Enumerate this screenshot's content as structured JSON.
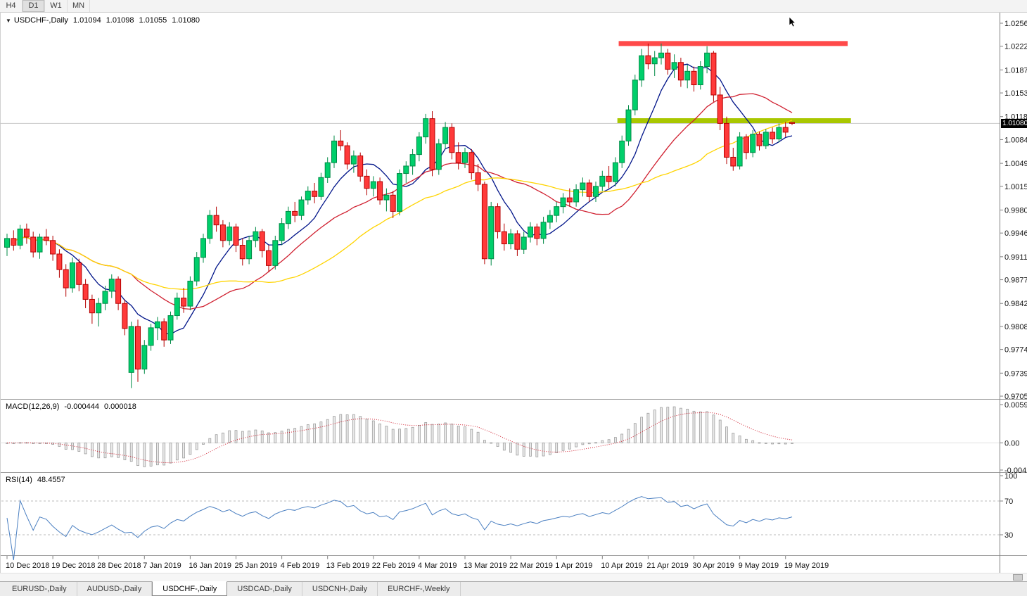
{
  "toolbar": {
    "timeframes": [
      "H4",
      "D1",
      "W1",
      "MN"
    ],
    "active": "D1"
  },
  "chart": {
    "title": {
      "symbol": "USDCHF-,Daily",
      "open": "1.01094",
      "high": "1.01098",
      "low": "1.01055",
      "close": "1.01080"
    },
    "current_price_label": "1.01080",
    "price_axis": [
      "1.02560",
      "1.02220",
      "1.01870",
      "1.01530",
      "1.01180",
      "1.00840",
      "1.00490",
      "1.00150",
      "0.99800",
      "0.99460",
      "0.99110",
      "0.98770",
      "0.98420",
      "0.98080",
      "0.97740",
      "0.97390",
      "0.97050"
    ],
    "date_axis": [
      "10 Dec 2018",
      "19 Dec 2018",
      "28 Dec 2018",
      "7 Jan 2019",
      "16 Jan 2019",
      "25 Jan 2019",
      "4 Feb 2019",
      "13 Feb 2019",
      "22 Feb 2019",
      "4 Mar 2019",
      "13 Mar 2019",
      "22 Mar 2019",
      "1 Apr 2019",
      "10 Apr 2019",
      "21 Apr 2019",
      "30 Apr 2019",
      "9 May 2019",
      "19 May 2019"
    ]
  },
  "macd": {
    "label": "MACD(12,26,9)",
    "value_main": "-0.000444",
    "value_signal": "0.000018",
    "axis": [
      "0.00597",
      "0.00",
      "-0.00424"
    ],
    "range": {
      "top": 0.00597,
      "bottom": -0.00424
    },
    "params": {
      "fast": 12,
      "slow": 26,
      "signal": 9
    }
  },
  "rsi": {
    "label": "RSI(14)",
    "value": "48.4557",
    "axis": [
      "100",
      "70",
      "30"
    ],
    "levels": [
      70,
      30
    ],
    "period": 14
  },
  "tabs": {
    "items": [
      "EURUSD-,Daily",
      "AUDUSD-,Daily",
      "USDCHF-,Daily",
      "USDCAD-,Daily",
      "USDCNH-,Daily",
      "EURCHF-,Weekly"
    ],
    "active_index": 2
  },
  "colors": {
    "candle_up": "#00cf6b",
    "candle_up_border": "#008a46",
    "candle_down": "#ff3a3a",
    "candle_down_border": "#b40000",
    "macd_hist_fill": "#e9e9e9",
    "macd_hist_border": "#9a9a9a",
    "macd_signal": "#d02030",
    "rsi_line": "#4a7fc1",
    "bid_line": "#c9c9c9",
    "resistance": "#ff4a4a",
    "support": "#a9c700"
  },
  "chart_data": {
    "type": "candlestick",
    "symbol": "USDCHF",
    "timeframe": "Daily",
    "price_range": {
      "top": 1.0256,
      "bottom": 0.9705
    },
    "moving_averages": [
      {
        "name": "ma-fast",
        "period": 8,
        "color": "#001489"
      },
      {
        "name": "ma-mid",
        "period": 20,
        "color": "#d02030"
      },
      {
        "name": "ma-slow",
        "period": 34,
        "color": "#ffd400"
      }
    ],
    "levels": [
      {
        "name": "resistance-line",
        "price": 1.0226,
        "from_index": 93.5,
        "to_index": 128.5,
        "color": "#ff4a4a",
        "thickness": 7
      },
      {
        "name": "support-line",
        "price": 1.0112,
        "from_index": 93.3,
        "to_index": 129.0,
        "color": "#a9c700",
        "thickness": 7
      }
    ],
    "bid_price": 1.0108,
    "ohlc": [
      [
        0.9925,
        0.9945,
        0.9912,
        0.9938
      ],
      [
        0.9938,
        0.995,
        0.992,
        0.9928
      ],
      [
        0.9928,
        0.9958,
        0.9922,
        0.9952
      ],
      [
        0.9952,
        0.996,
        0.993,
        0.994
      ],
      [
        0.994,
        0.9948,
        0.991,
        0.9918
      ],
      [
        0.9918,
        0.9945,
        0.9908,
        0.994
      ],
      [
        0.994,
        0.9952,
        0.9928,
        0.9935
      ],
      [
        0.9935,
        0.9942,
        0.9905,
        0.9915
      ],
      [
        0.9915,
        0.9922,
        0.988,
        0.9892
      ],
      [
        0.9892,
        0.99,
        0.9852,
        0.9865
      ],
      [
        0.9865,
        0.991,
        0.9858,
        0.9902
      ],
      [
        0.9902,
        0.9908,
        0.986,
        0.987
      ],
      [
        0.987,
        0.9878,
        0.9835,
        0.9848
      ],
      [
        0.9848,
        0.9855,
        0.9812,
        0.9828
      ],
      [
        0.9828,
        0.985,
        0.9808,
        0.9842
      ],
      [
        0.9842,
        0.9868,
        0.9832,
        0.986
      ],
      [
        0.986,
        0.9885,
        0.985,
        0.9878
      ],
      [
        0.9878,
        0.9882,
        0.9832,
        0.9842
      ],
      [
        0.9842,
        0.9848,
        0.9795,
        0.9805
      ],
      [
        0.974,
        0.9815,
        0.9717,
        0.9808
      ],
      [
        0.9808,
        0.9818,
        0.9726,
        0.9745
      ],
      [
        0.9745,
        0.9788,
        0.9738,
        0.978
      ],
      [
        0.978,
        0.9812,
        0.9772,
        0.9806
      ],
      [
        0.9806,
        0.9822,
        0.9788,
        0.9815
      ],
      [
        0.9815,
        0.982,
        0.9778,
        0.9788
      ],
      [
        0.9788,
        0.983,
        0.9782,
        0.9824
      ],
      [
        0.9824,
        0.9858,
        0.9818,
        0.985
      ],
      [
        0.985,
        0.9865,
        0.9828,
        0.9838
      ],
      [
        0.9838,
        0.9882,
        0.9832,
        0.9875
      ],
      [
        0.9875,
        0.9918,
        0.9868,
        0.991
      ],
      [
        0.991,
        0.9945,
        0.9902,
        0.9938
      ],
      [
        0.9938,
        0.998,
        0.993,
        0.9972
      ],
      [
        0.9972,
        0.9985,
        0.9948,
        0.9958
      ],
      [
        0.9958,
        0.9965,
        0.9925,
        0.9935
      ],
      [
        0.9935,
        0.9962,
        0.9928,
        0.9955
      ],
      [
        0.9955,
        0.996,
        0.9918,
        0.9928
      ],
      [
        0.9928,
        0.9938,
        0.9898,
        0.9908
      ],
      [
        0.9908,
        0.9942,
        0.99,
        0.9935
      ],
      [
        0.9935,
        0.9955,
        0.9925,
        0.9948
      ],
      [
        0.9948,
        0.9952,
        0.991,
        0.992
      ],
      [
        0.992,
        0.9928,
        0.9888,
        0.9898
      ],
      [
        0.9898,
        0.9942,
        0.9892,
        0.9935
      ],
      [
        0.9935,
        0.9968,
        0.9928,
        0.996
      ],
      [
        0.996,
        0.9985,
        0.9952,
        0.9978
      ],
      [
        0.9978,
        0.9992,
        0.9962,
        0.9972
      ],
      [
        0.9972,
        1.0,
        0.9965,
        0.9995
      ],
      [
        0.9995,
        1.0015,
        0.9988,
        1.0008
      ],
      [
        1.0008,
        1.002,
        0.999,
        1.0
      ],
      [
        1.0,
        1.0035,
        0.9995,
        1.0028
      ],
      [
        1.0028,
        1.0058,
        1.002,
        1.005
      ],
      [
        1.005,
        1.009,
        1.0042,
        1.0082
      ],
      [
        1.0082,
        1.0098,
        1.0068,
        1.0075
      ],
      [
        1.0075,
        1.008,
        1.004,
        1.0048
      ],
      [
        1.0048,
        1.0068,
        1.0035,
        1.006
      ],
      [
        1.006,
        1.0065,
        1.0022,
        1.003
      ],
      [
        1.003,
        1.004,
        1.0002,
        1.0012
      ],
      [
        1.0012,
        1.003,
        1.0,
        1.0022
      ],
      [
        1.0022,
        1.0028,
        0.9988,
        0.9995
      ],
      [
        0.9995,
        1.0012,
        0.9978,
        1.0002
      ],
      [
        1.0002,
        1.0008,
        0.9968,
        0.9978
      ],
      [
        0.9978,
        1.004,
        0.9972,
        1.0034
      ],
      [
        1.0034,
        1.0052,
        1.002,
        1.0045
      ],
      [
        1.0045,
        1.007,
        1.0032,
        1.0062
      ],
      [
        1.0062,
        1.0095,
        1.0052,
        1.0088
      ],
      [
        1.0088,
        1.0122,
        1.0078,
        1.0115
      ],
      [
        1.0115,
        1.0126,
        1.003,
        1.004
      ],
      [
        1.004,
        1.0085,
        1.0032,
        1.0078
      ],
      [
        1.0078,
        1.011,
        1.007,
        1.0102
      ],
      [
        1.0102,
        1.0108,
        1.0055,
        1.0065
      ],
      [
        1.0065,
        1.008,
        1.004,
        1.005
      ],
      [
        1.005,
        1.0072,
        1.0042,
        1.0065
      ],
      [
        1.0065,
        1.007,
        1.0025,
        1.0035
      ],
      [
        1.0035,
        1.0048,
        1.0008,
        1.0018
      ],
      [
        1.0018,
        1.0022,
        0.99,
        0.9908
      ],
      [
        0.9908,
        0.9992,
        0.9898,
        0.9985
      ],
      [
        0.9985,
        0.999,
        0.9938,
        0.9948
      ],
      [
        0.9948,
        0.996,
        0.992,
        0.993
      ],
      [
        0.993,
        0.9952,
        0.9922,
        0.9945
      ],
      [
        0.9945,
        0.995,
        0.9912,
        0.9922
      ],
      [
        0.9922,
        0.9948,
        0.9915,
        0.994
      ],
      [
        0.994,
        0.9962,
        0.9932,
        0.9955
      ],
      [
        0.9955,
        0.996,
        0.9928,
        0.9938
      ],
      [
        0.9938,
        0.997,
        0.993,
        0.9962
      ],
      [
        0.9962,
        0.998,
        0.9952,
        0.9972
      ],
      [
        0.9972,
        0.9992,
        0.9962,
        0.9985
      ],
      [
        0.9985,
        1.0005,
        0.9975,
        0.9998
      ],
      [
        0.9998,
        1.0012,
        0.9985,
        0.9992
      ],
      [
        0.9992,
        1.0018,
        0.9985,
        1.001
      ],
      [
        1.001,
        1.0028,
        1.0,
        1.002
      ],
      [
        1.002,
        1.0025,
        0.9992,
        1.0
      ],
      [
        1.0,
        1.0022,
        0.9992,
        1.0015
      ],
      [
        1.0015,
        1.0038,
        1.0008,
        1.003
      ],
      [
        1.003,
        1.0045,
        1.0012,
        1.0022
      ],
      [
        1.0022,
        1.0058,
        1.0015,
        1.005
      ],
      [
        1.005,
        1.009,
        1.0042,
        1.0082
      ],
      [
        1.0082,
        1.0135,
        1.0075,
        1.0128
      ],
      [
        1.0128,
        1.018,
        1.012,
        1.0172
      ],
      [
        1.0172,
        1.0218,
        1.0162,
        1.0208
      ],
      [
        1.0208,
        1.0226,
        1.0188,
        1.0196
      ],
      [
        1.0196,
        1.0215,
        1.0178,
        1.0205
      ],
      [
        1.0205,
        1.0226,
        1.0195,
        1.0212
      ],
      [
        1.0212,
        1.0218,
        1.018,
        1.0188
      ],
      [
        1.0188,
        1.021,
        1.0175,
        1.0198
      ],
      [
        1.0198,
        1.0205,
        1.0162,
        1.0172
      ],
      [
        1.0172,
        1.0195,
        1.016,
        1.0185
      ],
      [
        1.0185,
        1.0192,
        1.0155,
        1.0165
      ],
      [
        1.0165,
        1.02,
        1.0158,
        1.0192
      ],
      [
        1.0192,
        1.0222,
        1.0182,
        1.0212
      ],
      [
        1.0212,
        1.0215,
        1.014,
        1.015
      ],
      [
        1.015,
        1.0162,
        1.0098,
        1.0108
      ],
      [
        1.0108,
        1.0118,
        1.0048,
        1.0058
      ],
      [
        1.0058,
        1.0072,
        1.0038,
        1.0045
      ],
      [
        1.0045,
        1.0095,
        1.004,
        1.0088
      ],
      [
        1.0088,
        1.0092,
        1.0055,
        1.0065
      ],
      [
        1.0065,
        1.0098,
        1.0058,
        1.0092
      ],
      [
        1.0092,
        1.0096,
        1.0068,
        1.0075
      ],
      [
        1.0075,
        1.01,
        1.007,
        1.0095
      ],
      [
        1.0095,
        1.0102,
        1.0078,
        1.0085
      ],
      [
        1.0085,
        1.0108,
        1.008,
        1.0102
      ],
      [
        1.0102,
        1.011,
        1.0088,
        1.0095
      ],
      [
        1.01094,
        1.01098,
        1.01055,
        1.0108
      ]
    ]
  }
}
